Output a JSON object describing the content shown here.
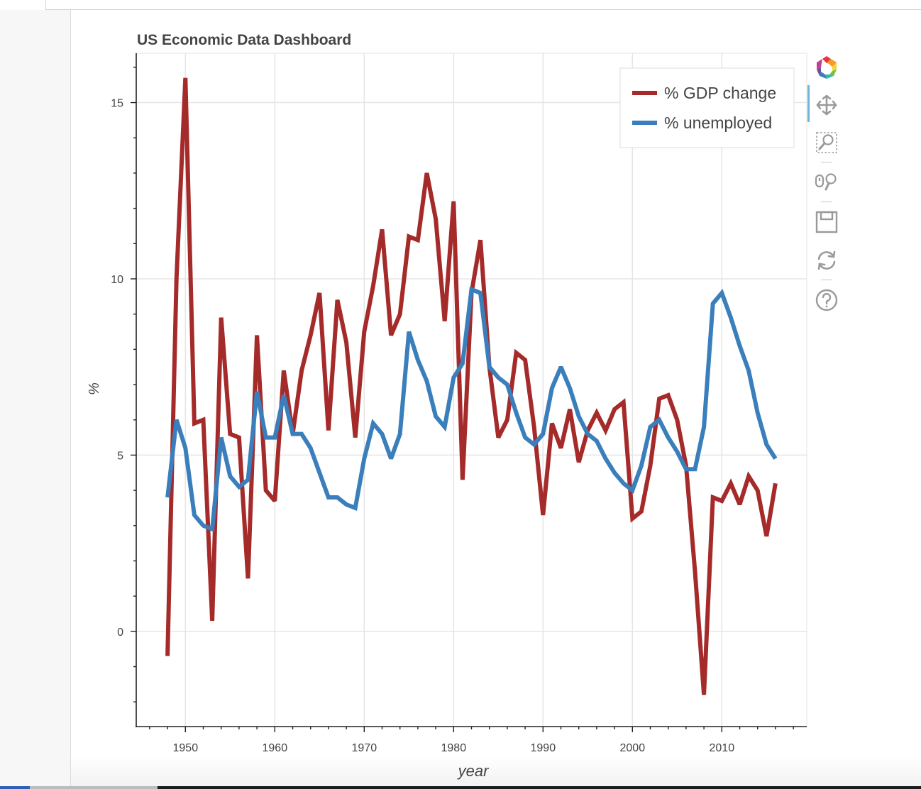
{
  "chart_data": {
    "type": "line",
    "title": "US Economic Data Dashboard",
    "xlabel": "year",
    "ylabel": "%",
    "xlim": [
      1944.5,
      2019.5
    ],
    "ylim": [
      -2.7,
      16.4
    ],
    "x_ticks": [
      1950,
      1960,
      1970,
      1980,
      1990,
      2000,
      2010
    ],
    "x_tick_labels": [
      "1950",
      "1960",
      "1970",
      "1980",
      "1990",
      "2000",
      "2010"
    ],
    "y_ticks": [
      0,
      5,
      10,
      15
    ],
    "y_tick_labels": [
      "0",
      "5",
      "10",
      "15"
    ],
    "grid": true,
    "legend_position": "top-right",
    "x": [
      1948,
      1949,
      1950,
      1951,
      1952,
      1953,
      1954,
      1955,
      1956,
      1957,
      1958,
      1959,
      1960,
      1961,
      1962,
      1963,
      1964,
      1965,
      1966,
      1967,
      1968,
      1969,
      1970,
      1971,
      1972,
      1973,
      1974,
      1975,
      1976,
      1977,
      1978,
      1979,
      1980,
      1981,
      1982,
      1983,
      1984,
      1985,
      1986,
      1987,
      1988,
      1989,
      1990,
      1991,
      1992,
      1993,
      1994,
      1995,
      1996,
      1997,
      1998,
      1999,
      2000,
      2001,
      2002,
      2003,
      2004,
      2005,
      2006,
      2007,
      2008,
      2009,
      2010,
      2011,
      2012,
      2013,
      2014,
      2015,
      2016
    ],
    "series": [
      {
        "name": "% GDP change",
        "color": "#a52a2a",
        "values": [
          -0.7,
          10.0,
          15.7,
          5.9,
          6.0,
          0.3,
          8.9,
          5.6,
          5.5,
          1.5,
          8.4,
          4.0,
          3.7,
          7.4,
          5.6,
          7.4,
          8.4,
          9.6,
          5.7,
          9.4,
          8.2,
          5.5,
          8.5,
          9.8,
          11.4,
          8.4,
          9.0,
          11.2,
          11.1,
          13.0,
          11.7,
          8.8,
          12.2,
          4.3,
          9.6,
          11.1,
          7.5,
          5.5,
          6.0,
          7.9,
          7.7,
          5.8,
          3.3,
          5.9,
          5.2,
          6.3,
          4.8,
          5.7,
          6.2,
          5.7,
          6.3,
          6.5,
          3.2,
          3.4,
          4.7,
          6.6,
          6.7,
          6.0,
          4.7,
          1.7,
          -1.8,
          3.8,
          3.7,
          4.2,
          3.6,
          4.4,
          4.0,
          2.7,
          4.2
        ]
      },
      {
        "name": "% unemployed",
        "color": "#3a7fbb",
        "values": [
          3.8,
          6.0,
          5.2,
          3.3,
          3.0,
          2.9,
          5.5,
          4.4,
          4.1,
          4.3,
          6.8,
          5.5,
          5.5,
          6.7,
          5.6,
          5.6,
          5.2,
          4.5,
          3.8,
          3.8,
          3.6,
          3.5,
          4.9,
          5.9,
          5.6,
          4.9,
          5.6,
          8.5,
          7.7,
          7.1,
          6.1,
          5.8,
          7.2,
          7.6,
          9.7,
          9.6,
          7.5,
          7.2,
          7.0,
          6.2,
          5.5,
          5.3,
          5.6,
          6.9,
          7.5,
          6.9,
          6.1,
          5.6,
          5.4,
          4.9,
          4.5,
          4.2,
          4.0,
          4.7,
          5.8,
          6.0,
          5.5,
          5.1,
          4.6,
          4.6,
          5.8,
          9.3,
          9.6,
          8.9,
          8.1,
          7.4,
          6.2,
          5.3,
          4.9
        ]
      }
    ]
  },
  "toolbar": {
    "tools": [
      "bokeh-logo-icon",
      "pan-icon",
      "box-zoom-icon",
      "wheel-zoom-icon",
      "save-icon",
      "reset-icon",
      "help-icon"
    ]
  }
}
